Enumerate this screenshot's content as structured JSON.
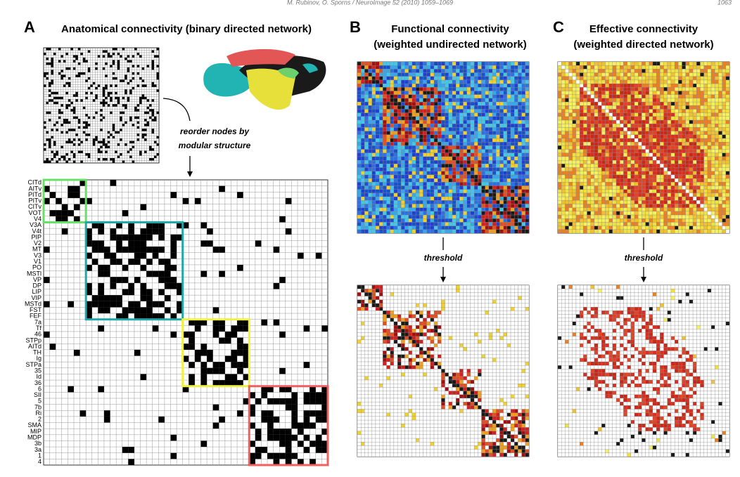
{
  "header": {
    "running_head": "M. Rubinov, O. Sporns / NeuroImage 52 (2010) 1059–1069",
    "page": "1063"
  },
  "panels": [
    {
      "letter": "A",
      "title": [
        "Anatomical connectivity (binary directed network)"
      ]
    },
    {
      "letter": "B",
      "title": [
        "Functional connectivity",
        "(weighted undirected network)"
      ]
    },
    {
      "letter": "C",
      "title": [
        "Effective connectivity",
        "(weighted directed network)"
      ]
    }
  ],
  "annotations": {
    "reorder": [
      "reorder nodes by",
      "modular structure"
    ],
    "threshold_b": "threshold",
    "threshold_c": "threshold"
  },
  "node_labels": [
    "CITd",
    "AITv",
    "PITd",
    "PITv",
    "CITv",
    "VOT",
    "V4",
    "V3A",
    "V4t",
    "PIP",
    "V2",
    "MT",
    "V3",
    "V1",
    "PO",
    "MSTl",
    "VP",
    "DP",
    "LIP",
    "VIP",
    "MSTd",
    "FST",
    "FEF",
    "7a",
    "Tf",
    "46",
    "STPp",
    "AITd",
    "TH",
    "Ig",
    "STPa",
    "35",
    "Id",
    "36",
    "6",
    "SII",
    "5",
    "7b",
    "Ri",
    "2",
    "SMA",
    "MIP",
    "MDP",
    "3b",
    "3a",
    "1",
    "4"
  ]
}
